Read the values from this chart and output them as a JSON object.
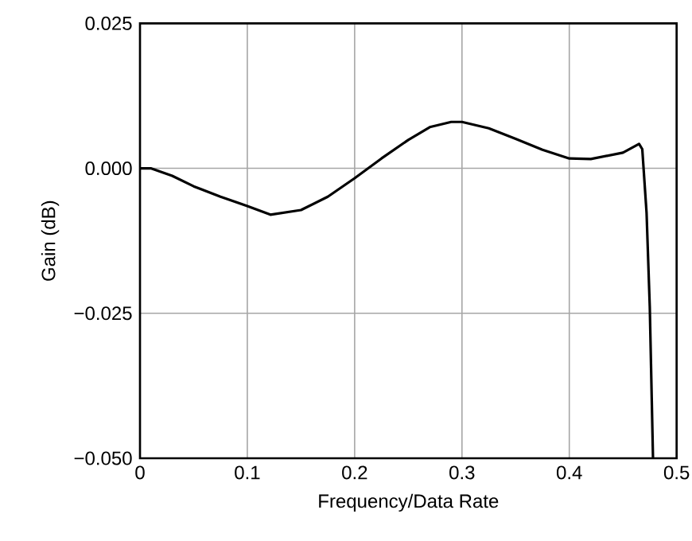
{
  "chart_data": {
    "type": "line",
    "xlabel": "Frequency/Data Rate",
    "ylabel": "Gain (dB)",
    "grid": true,
    "xlim": [
      0,
      0.5
    ],
    "ylim": [
      -0.05,
      0.025
    ],
    "xticks": [
      {
        "value": 0,
        "label": "0"
      },
      0.1,
      0.2,
      0.3,
      0.4,
      0.5
    ],
    "yticks": [
      {
        "value": -0.05,
        "label": "−0.050"
      },
      {
        "value": -0.025,
        "label": "−0.025"
      },
      {
        "value": 0,
        "label": "0.000"
      },
      {
        "value": 0.025,
        "label": "0.025"
      }
    ],
    "series": [
      {
        "color": "#000000",
        "x": [
          0,
          0.01,
          0.03,
          0.05,
          0.075,
          0.1,
          0.1215,
          0.15,
          0.175,
          0.2,
          0.225,
          0.25,
          0.27,
          0.29,
          0.3,
          0.325,
          0.35,
          0.375,
          0.4,
          0.42,
          0.45,
          0.465,
          0.468,
          0.472,
          0.475,
          0.478
        ],
        "values": [
          0,
          0,
          -0.0013,
          -0.0031,
          -0.0049,
          -0.0065,
          -0.008,
          -0.0072,
          -0.0049,
          -0.0017,
          0.0017,
          0.0049,
          0.0071,
          0.008,
          0.008,
          0.0069,
          0.0051,
          0.0032,
          0.0017,
          0.0016,
          0.0027,
          0.0042,
          0.0033,
          -0.0077,
          -0.024,
          -0.05
        ]
      }
    ]
  }
}
